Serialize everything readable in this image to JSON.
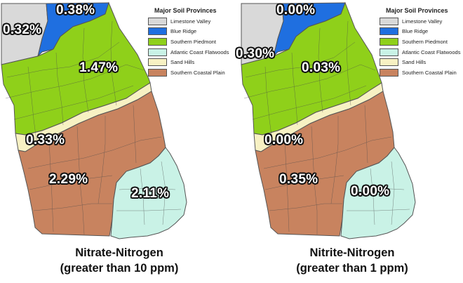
{
  "legend": {
    "title": "Major Soil Provinces",
    "items": [
      {
        "label": "Limestone Valley",
        "color": "#d9d9d9"
      },
      {
        "label": "Blue Ridge",
        "color": "#1f6fe0"
      },
      {
        "label": "Southern Piedmont",
        "color": "#8fd01a"
      },
      {
        "label": "Atlantic Coast Flatwoods",
        "color": "#c9f2e6"
      },
      {
        "label": "Sand Hills",
        "color": "#f7f1c3"
      },
      {
        "label": "Southern Coastal Plain",
        "color": "#c8835f"
      }
    ]
  },
  "maps": [
    {
      "caption_line1": "Nitrate-Nitrogen",
      "caption_line2": "(greater than 10 ppm)",
      "values": {
        "limestone_valley": "0.32%",
        "blue_ridge": "0.38%",
        "southern_piedmont": "1.47%",
        "sand_hills": "0.33%",
        "southern_coastal_plain": "2.29%",
        "atlantic_coast_flatwoods": "2.11%"
      }
    },
    {
      "caption_line1": "Nitrite-Nitrogen",
      "caption_line2": "(greater than 1 ppm)",
      "values": {
        "limestone_valley": "0.30%",
        "blue_ridge": "0.00%",
        "southern_piedmont": "0.03%",
        "sand_hills": "0.00%",
        "southern_coastal_plain": "0.35%",
        "atlantic_coast_flatwoods": "0.00%"
      }
    }
  ]
}
